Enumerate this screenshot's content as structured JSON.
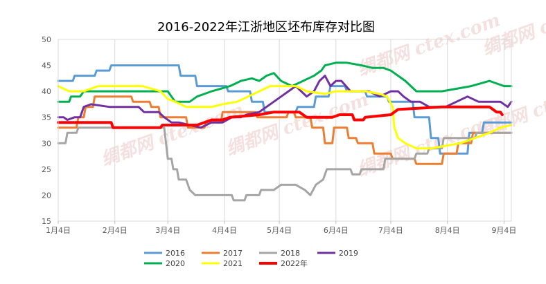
{
  "chart_data": {
    "type": "line",
    "title": "2016-2022年江浙地区坯布库存对比图",
    "xlabel": "",
    "ylabel": "",
    "ylim": [
      15,
      50
    ],
    "yticks": [
      15,
      20,
      25,
      30,
      35,
      40,
      45,
      50
    ],
    "xlim": [
      0,
      248
    ],
    "xticks": [
      {
        "label": "1月4日",
        "x": 0
      },
      {
        "label": "2月4日",
        "x": 31
      },
      {
        "label": "3月4日",
        "x": 60
      },
      {
        "label": "4月4日",
        "x": 91
      },
      {
        "label": "5月4日",
        "x": 121
      },
      {
        "label": "6月4日",
        "x": 152
      },
      {
        "label": "7月4日",
        "x": 182
      },
      {
        "label": "8月4日",
        "x": 213
      },
      {
        "label": "9月4日",
        "x": 244
      }
    ],
    "grid": "vertical",
    "legend_position": "bottom",
    "watermark": "绸都网 ctex.com",
    "series": [
      {
        "name": "2016",
        "color": "#5b9bd5",
        "points": [
          [
            0,
            42
          ],
          [
            8,
            42
          ],
          [
            9,
            43
          ],
          [
            20,
            43
          ],
          [
            21,
            44
          ],
          [
            28,
            44
          ],
          [
            29,
            45
          ],
          [
            60,
            45
          ],
          [
            66,
            45
          ],
          [
            67,
            43
          ],
          [
            75,
            43
          ],
          [
            76,
            41
          ],
          [
            92,
            41
          ],
          [
            93,
            40
          ],
          [
            105,
            40
          ],
          [
            106,
            38
          ],
          [
            112,
            38
          ],
          [
            113,
            36
          ],
          [
            130,
            36
          ],
          [
            131,
            37
          ],
          [
            140,
            37
          ],
          [
            141,
            39
          ],
          [
            148,
            39
          ],
          [
            149,
            41
          ],
          [
            157,
            41
          ],
          [
            158,
            40
          ],
          [
            168,
            40
          ],
          [
            169,
            39
          ],
          [
            180,
            39
          ],
          [
            181,
            38
          ],
          [
            194,
            38
          ],
          [
            195,
            35
          ],
          [
            203,
            35
          ],
          [
            204,
            31
          ],
          [
            208,
            31
          ],
          [
            209,
            28
          ],
          [
            224,
            28
          ],
          [
            225,
            32
          ],
          [
            232,
            32
          ],
          [
            233,
            34
          ],
          [
            248,
            34
          ]
        ]
      },
      {
        "name": "2017",
        "color": "#ed7d31",
        "points": [
          [
            0,
            33
          ],
          [
            10,
            33
          ],
          [
            11,
            35
          ],
          [
            14,
            35
          ],
          [
            15,
            37
          ],
          [
            19,
            37
          ],
          [
            20,
            39
          ],
          [
            40,
            39
          ],
          [
            41,
            38
          ],
          [
            50,
            38
          ],
          [
            51,
            37
          ],
          [
            55,
            37
          ],
          [
            56,
            35
          ],
          [
            70,
            35
          ],
          [
            71,
            33
          ],
          [
            80,
            33
          ],
          [
            81,
            34
          ],
          [
            89,
            34
          ],
          [
            90,
            36
          ],
          [
            108,
            36
          ],
          [
            109,
            35
          ],
          [
            125,
            35
          ],
          [
            126,
            36
          ],
          [
            129,
            36
          ],
          [
            130,
            35
          ],
          [
            138,
            35
          ],
          [
            139,
            33
          ],
          [
            145,
            33
          ],
          [
            146,
            30
          ],
          [
            150,
            30
          ],
          [
            151,
            33
          ],
          [
            158,
            33
          ],
          [
            159,
            31
          ],
          [
            163,
            31
          ],
          [
            164,
            30
          ],
          [
            172,
            30
          ],
          [
            173,
            28
          ],
          [
            182,
            28
          ],
          [
            183,
            27
          ],
          [
            195,
            27
          ],
          [
            196,
            26
          ],
          [
            210,
            26
          ],
          [
            211,
            28
          ],
          [
            218,
            28
          ],
          [
            219,
            30
          ],
          [
            226,
            30
          ],
          [
            227,
            32
          ],
          [
            248,
            32
          ]
        ]
      },
      {
        "name": "2018",
        "color": "#a5a5a5",
        "points": [
          [
            0,
            30
          ],
          [
            4,
            30
          ],
          [
            5,
            32
          ],
          [
            10,
            32
          ],
          [
            11,
            33
          ],
          [
            25,
            33
          ],
          [
            40,
            33
          ],
          [
            55,
            33
          ],
          [
            58,
            33
          ],
          [
            59,
            30
          ],
          [
            60,
            27
          ],
          [
            62,
            27
          ],
          [
            63,
            25
          ],
          [
            65,
            25
          ],
          [
            66,
            23
          ],
          [
            70,
            23
          ],
          [
            72,
            21
          ],
          [
            75,
            20
          ],
          [
            90,
            20
          ],
          [
            95,
            20
          ],
          [
            96,
            19
          ],
          [
            102,
            19
          ],
          [
            103,
            20
          ],
          [
            110,
            20
          ],
          [
            111,
            21
          ],
          [
            118,
            21
          ],
          [
            122,
            22
          ],
          [
            130,
            22
          ],
          [
            135,
            21
          ],
          [
            138,
            20
          ],
          [
            141,
            22
          ],
          [
            145,
            23
          ],
          [
            147,
            25
          ],
          [
            160,
            25
          ],
          [
            161,
            24
          ],
          [
            165,
            24
          ],
          [
            166,
            25
          ],
          [
            178,
            25
          ],
          [
            179,
            27
          ],
          [
            195,
            27
          ],
          [
            196,
            28
          ],
          [
            202,
            28
          ],
          [
            203,
            29
          ],
          [
            210,
            29
          ],
          [
            211,
            31
          ],
          [
            228,
            31
          ],
          [
            229,
            32
          ],
          [
            248,
            32
          ]
        ]
      },
      {
        "name": "2019",
        "color": "#7030a0",
        "points": [
          [
            0,
            35
          ],
          [
            3,
            35
          ],
          [
            5,
            34.5
          ],
          [
            9,
            35
          ],
          [
            12,
            35
          ],
          [
            14,
            37
          ],
          [
            18,
            37.5
          ],
          [
            28,
            37
          ],
          [
            40,
            37
          ],
          [
            44,
            37
          ],
          [
            47,
            36
          ],
          [
            55,
            36
          ],
          [
            58,
            35
          ],
          [
            62,
            34
          ],
          [
            66,
            34
          ],
          [
            72,
            33.5
          ],
          [
            78,
            33
          ],
          [
            84,
            34
          ],
          [
            90,
            34
          ],
          [
            95,
            35
          ],
          [
            100,
            35
          ],
          [
            103,
            35.5
          ],
          [
            110,
            36
          ],
          [
            114,
            37
          ],
          [
            118,
            38
          ],
          [
            122,
            39
          ],
          [
            126,
            40
          ],
          [
            130,
            41
          ],
          [
            133,
            40
          ],
          [
            136,
            39
          ],
          [
            140,
            40
          ],
          [
            143,
            42
          ],
          [
            146,
            43
          ],
          [
            149,
            41
          ],
          [
            152,
            42
          ],
          [
            155,
            42
          ],
          [
            160,
            40
          ],
          [
            163,
            40
          ],
          [
            170,
            40
          ],
          [
            176,
            39
          ],
          [
            182,
            40
          ],
          [
            186,
            40
          ],
          [
            189,
            39
          ],
          [
            193,
            38
          ],
          [
            198,
            38
          ],
          [
            203,
            37
          ],
          [
            212,
            37
          ],
          [
            218,
            38
          ],
          [
            224,
            39
          ],
          [
            230,
            38
          ],
          [
            236,
            38
          ],
          [
            242,
            38
          ],
          [
            246,
            37
          ],
          [
            248,
            38
          ]
        ]
      },
      {
        "name": "2020",
        "color": "#00b050",
        "points": [
          [
            0,
            38
          ],
          [
            6,
            38
          ],
          [
            7,
            39
          ],
          [
            12,
            39
          ],
          [
            14,
            40
          ],
          [
            60,
            40
          ],
          [
            62,
            39
          ],
          [
            64,
            38
          ],
          [
            72,
            38
          ],
          [
            76,
            39
          ],
          [
            84,
            40
          ],
          [
            94,
            41
          ],
          [
            100,
            42
          ],
          [
            106,
            42.5
          ],
          [
            110,
            42
          ],
          [
            114,
            43
          ],
          [
            118,
            43.5
          ],
          [
            122,
            42
          ],
          [
            128,
            41
          ],
          [
            134,
            42
          ],
          [
            140,
            43
          ],
          [
            144,
            44
          ],
          [
            146,
            45
          ],
          [
            152,
            45.5
          ],
          [
            158,
            45.5
          ],
          [
            166,
            45
          ],
          [
            172,
            44.5
          ],
          [
            178,
            44.5
          ],
          [
            182,
            44
          ],
          [
            186,
            43
          ],
          [
            190,
            42
          ],
          [
            196,
            40
          ],
          [
            210,
            40
          ],
          [
            218,
            40.5
          ],
          [
            226,
            41
          ],
          [
            236,
            42
          ],
          [
            240,
            41.5
          ],
          [
            244,
            41
          ],
          [
            248,
            41
          ]
        ]
      },
      {
        "name": "2021",
        "color": "#ffff00",
        "points": [
          [
            0,
            41
          ],
          [
            6,
            40
          ],
          [
            14,
            40
          ],
          [
            22,
            41
          ],
          [
            30,
            41
          ],
          [
            46,
            41
          ],
          [
            56,
            40
          ],
          [
            60,
            38.5
          ],
          [
            64,
            38
          ],
          [
            70,
            37
          ],
          [
            84,
            37
          ],
          [
            90,
            37.5
          ],
          [
            98,
            38
          ],
          [
            104,
            39
          ],
          [
            110,
            40
          ],
          [
            116,
            41
          ],
          [
            130,
            41
          ],
          [
            136,
            40
          ],
          [
            146,
            39.5
          ],
          [
            152,
            40
          ],
          [
            160,
            40
          ],
          [
            168,
            40
          ],
          [
            176,
            39.5
          ],
          [
            180,
            39
          ],
          [
            183,
            37
          ],
          [
            184,
            33
          ],
          [
            186,
            31
          ],
          [
            190,
            30
          ],
          [
            196,
            29
          ],
          [
            204,
            29
          ],
          [
            212,
            29.5
          ],
          [
            220,
            30
          ],
          [
            228,
            31
          ],
          [
            236,
            32
          ],
          [
            242,
            33
          ],
          [
            248,
            33.5
          ]
        ]
      },
      {
        "name": "2022年",
        "color": "#ff0000",
        "points": [
          [
            0,
            34
          ],
          [
            29,
            34
          ],
          [
            30,
            33
          ],
          [
            56,
            33
          ],
          [
            57,
            33.5
          ],
          [
            76,
            33.5
          ],
          [
            80,
            34
          ],
          [
            84,
            34.5
          ],
          [
            90,
            34.5
          ],
          [
            94,
            35
          ],
          [
            110,
            35.5
          ],
          [
            118,
            36
          ],
          [
            132,
            36
          ],
          [
            136,
            35
          ],
          [
            146,
            35
          ],
          [
            150,
            35
          ],
          [
            154,
            35.5
          ],
          [
            161,
            35.5
          ],
          [
            162,
            34.5
          ],
          [
            167,
            34.5
          ],
          [
            168,
            35
          ],
          [
            182,
            35.5
          ],
          [
            186,
            36.5
          ],
          [
            210,
            37
          ],
          [
            236,
            37
          ],
          [
            240,
            36
          ],
          [
            242,
            36
          ],
          [
            243,
            35.5
          ]
        ]
      }
    ]
  },
  "legend": {
    "row1": [
      "2016",
      "2017",
      "2018",
      "2019"
    ],
    "row2": [
      "2020",
      "2021",
      "2022年"
    ]
  }
}
